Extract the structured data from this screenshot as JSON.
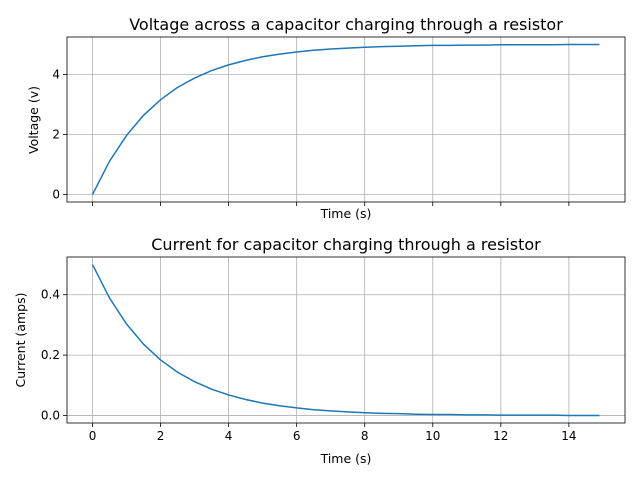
{
  "chart_data": [
    {
      "type": "line",
      "title": "Voltage across a capacitor charging through a resistor",
      "xlabel": "Time (s)",
      "ylabel": "Voltage (v)",
      "xlim": [
        -0.75,
        15.65
      ],
      "ylim": [
        -0.25,
        5.25
      ],
      "xticks": [
        0,
        2,
        4,
        6,
        8,
        10,
        12,
        14
      ],
      "xtick_labels_shown": false,
      "yticks": [
        0,
        2,
        4
      ],
      "ytick_labels": [
        "0",
        "2",
        "4"
      ],
      "grid": true,
      "legend": "none",
      "color": "#1f77b4",
      "series": [
        {
          "x": [
            0,
            0.5,
            1,
            1.5,
            2,
            2.5,
            3,
            3.5,
            4,
            4.5,
            5,
            5.5,
            6,
            6.5,
            7,
            7.5,
            8,
            8.5,
            9,
            9.5,
            10,
            10.5,
            11,
            11.5,
            12,
            12.5,
            13,
            13.5,
            14,
            14.5,
            14.9
          ],
          "y": [
            0.0,
            1.11,
            1.97,
            2.64,
            3.16,
            3.57,
            3.88,
            4.13,
            4.32,
            4.47,
            4.59,
            4.68,
            4.75,
            4.81,
            4.85,
            4.88,
            4.91,
            4.93,
            4.94,
            4.96,
            4.97,
            4.97,
            4.98,
            4.98,
            4.99,
            4.99,
            4.99,
            4.99,
            5.0,
            5.0,
            5.0
          ]
        }
      ]
    },
    {
      "type": "line",
      "title": "Current for capacitor charging through a resistor",
      "xlabel": "Time (s)",
      "ylabel": "Current (amps)",
      "xlim": [
        -0.75,
        15.65
      ],
      "ylim": [
        -0.025,
        0.525
      ],
      "xticks": [
        0,
        2,
        4,
        6,
        8,
        10,
        12,
        14
      ],
      "xtick_labels": [
        "0",
        "2",
        "4",
        "6",
        "8",
        "10",
        "12",
        "14"
      ],
      "yticks": [
        0.0,
        0.2,
        0.4
      ],
      "ytick_labels": [
        "0.0",
        "0.2",
        "0.4"
      ],
      "grid": true,
      "legend": "none",
      "color": "#1f77b4",
      "series": [
        {
          "x": [
            0,
            0.5,
            1,
            1.5,
            2,
            2.5,
            3,
            3.5,
            4,
            4.5,
            5,
            5.5,
            6,
            6.5,
            7,
            7.5,
            8,
            8.5,
            9,
            9.5,
            10,
            10.5,
            11,
            11.5,
            12,
            12.5,
            13,
            13.5,
            14,
            14.5,
            14.9
          ],
          "y": [
            0.5,
            0.389,
            0.303,
            0.236,
            0.184,
            0.143,
            0.112,
            0.087,
            0.068,
            0.053,
            0.041,
            0.032,
            0.025,
            0.019,
            0.015,
            0.012,
            0.009,
            0.007,
            0.006,
            0.004,
            0.003,
            0.003,
            0.002,
            0.002,
            0.001,
            0.001,
            0.001,
            0.001,
            0.0,
            0.0,
            0.0
          ]
        }
      ]
    }
  ]
}
